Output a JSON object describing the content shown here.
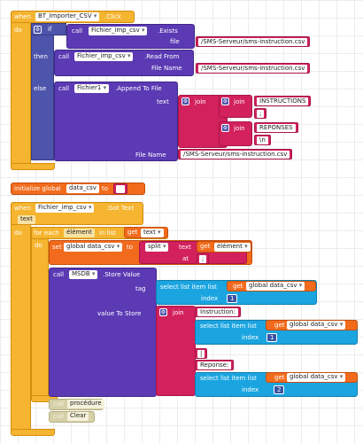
{
  "event1": {
    "when": "when",
    "component": "BT_Importer_CSV",
    "event": ".Click",
    "do": "do",
    "if_label": "if",
    "then_label": "then",
    "else_label": "else",
    "exists_call": "call",
    "exists_component": "Fichier_imp_csv",
    "exists_method": ".Exists",
    "exists_param": "file",
    "exists_value": "/SMS-Serveur/sms-instruction.csv",
    "read_call": "call",
    "read_component": "Fichier_imp_csv",
    "read_method": ".Read From",
    "read_param": "File Name",
    "read_value": "/SMS-Serveur/sms-instruction.csv",
    "append_call": "call",
    "append_component": "Fichier1",
    "append_method": ".Append To File",
    "text_param": "text",
    "join1": "join",
    "join2": "join",
    "join3": "join",
    "str_instructions": "INSTRUCTIONS",
    "str_semicolon": ";",
    "str_reponses": "REPONSES",
    "str_newline": "\\n",
    "append_file_param": "File Name",
    "append_file_value": "/SMS-Serveur/sms-instruction.csv"
  },
  "global_var": {
    "label": "initialize global",
    "name": "data_csv",
    "to": "to",
    "value": ""
  },
  "event2": {
    "when": "when",
    "component": "Fichier_imp_csv",
    "event": ".Got Text",
    "param": "text",
    "do": "do",
    "for_each": "for each",
    "item_var": "élément",
    "in_list": "in list",
    "get1": "get",
    "get1_var": "text",
    "do2": "do",
    "set": "set",
    "set_var": "global data_csv",
    "to": "to",
    "split": "split",
    "split_text": "text",
    "get2": "get",
    "get2_var": "élément",
    "at": "at",
    "at_value": ";",
    "store_call": "call",
    "store_component": "MSDB",
    "store_method": ".Store Value",
    "tag_label": "tag",
    "select1": "select list item  list",
    "get3": "get",
    "get3_var": "global data_csv",
    "index_label1": "index",
    "index1": "1",
    "value_label": "value To Store",
    "join": "join",
    "str_instruction": "Instruction:",
    "select2": "select list item  list",
    "get4": "get",
    "get4_var": "global data_csv",
    "index_label2": "index",
    "index2": "1",
    "str_pipe": "|",
    "str_reponse": "Reponse:",
    "select3": "select list item  list",
    "get5": "get",
    "get5_var": "global data_csv",
    "index_label3": "index",
    "index3": "2",
    "call_proc": "call",
    "proc_name": "procédure",
    "call_clear": "call",
    "clear_name": "Clear"
  }
}
